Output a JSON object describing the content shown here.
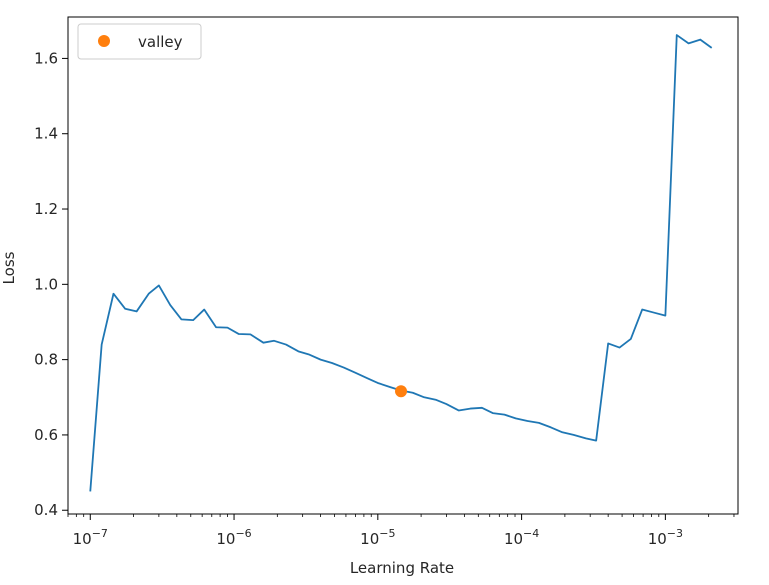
{
  "chart_data": {
    "type": "line",
    "xlabel": "Learning Rate",
    "ylabel": "Loss",
    "xscale": "log",
    "xlim": [
      7e-08,
      0.0032
    ],
    "ylim": [
      0.39,
      1.71
    ],
    "grid": false,
    "legend_position": "top-left",
    "x_ticks": [
      {
        "value": 1e-07,
        "base": "10",
        "exp": "−7"
      },
      {
        "value": 1e-06,
        "base": "10",
        "exp": "−6"
      },
      {
        "value": 1e-05,
        "base": "10",
        "exp": "−5"
      },
      {
        "value": 0.0001,
        "base": "10",
        "exp": "−4"
      },
      {
        "value": 0.001,
        "base": "10",
        "exp": "−3"
      }
    ],
    "y_ticks": [
      {
        "value": 0.4,
        "label": "0.4"
      },
      {
        "value": 0.6,
        "label": "0.6"
      },
      {
        "value": 0.8,
        "label": "0.8"
      },
      {
        "value": 1.0,
        "label": "1.0"
      },
      {
        "value": 1.2,
        "label": "1.2"
      },
      {
        "value": 1.4,
        "label": "1.4"
      },
      {
        "value": 1.6,
        "label": "1.6"
      }
    ],
    "series": [
      {
        "color": "#1f77b4",
        "points": [
          [
            1e-07,
            0.45
          ],
          [
            1.2e-07,
            0.84
          ],
          [
            1.45e-07,
            0.975
          ],
          [
            1.75e-07,
            0.935
          ],
          [
            2.1e-07,
            0.928
          ],
          [
            2.55e-07,
            0.975
          ],
          [
            3e-07,
            0.997
          ],
          [
            3.6e-07,
            0.945
          ],
          [
            4.3e-07,
            0.907
          ],
          [
            5.2e-07,
            0.905
          ],
          [
            6.2e-07,
            0.933
          ],
          [
            7.5e-07,
            0.886
          ],
          [
            9e-07,
            0.885
          ],
          [
            1.08e-06,
            0.868
          ],
          [
            1.3e-06,
            0.867
          ],
          [
            1.6e-06,
            0.845
          ],
          [
            1.9e-06,
            0.85
          ],
          [
            2.3e-06,
            0.84
          ],
          [
            2.8e-06,
            0.822
          ],
          [
            3.3e-06,
            0.814
          ],
          [
            4e-06,
            0.8
          ],
          [
            4.8e-06,
            0.791
          ],
          [
            5.8e-06,
            0.779
          ],
          [
            7e-06,
            0.765
          ],
          [
            8.4e-06,
            0.751
          ],
          [
            1e-05,
            0.738
          ],
          [
            1.22e-05,
            0.727
          ],
          [
            1.45e-05,
            0.718
          ],
          [
            1.75e-05,
            0.712
          ],
          [
            2.1e-05,
            0.7
          ],
          [
            2.55e-05,
            0.693
          ],
          [
            3e-05,
            0.682
          ],
          [
            3.65e-05,
            0.665
          ],
          [
            4.4e-05,
            0.67
          ],
          [
            5.3e-05,
            0.672
          ],
          [
            6.3e-05,
            0.658
          ],
          [
            7.6e-05,
            0.654
          ],
          [
            9.1e-05,
            0.644
          ],
          [
            0.00011,
            0.637
          ],
          [
            0.000132,
            0.632
          ],
          [
            0.00016,
            0.62
          ],
          [
            0.000192,
            0.607
          ],
          [
            0.00023,
            0.6
          ],
          [
            0.00028,
            0.591
          ],
          [
            0.00033,
            0.585
          ],
          [
            0.0004,
            0.843
          ],
          [
            0.00048,
            0.832
          ],
          [
            0.000575,
            0.855
          ],
          [
            0.00069,
            0.933
          ],
          [
            0.00083,
            0.925
          ],
          [
            0.001,
            0.917
          ],
          [
            0.0012,
            1.662
          ],
          [
            0.00145,
            1.64
          ],
          [
            0.00175,
            1.65
          ],
          [
            0.0021,
            1.628
          ]
        ]
      }
    ],
    "markers": [
      {
        "name": "valley",
        "x": 1.45e-05,
        "y": 0.716,
        "color": "#ff7f0e"
      }
    ]
  }
}
